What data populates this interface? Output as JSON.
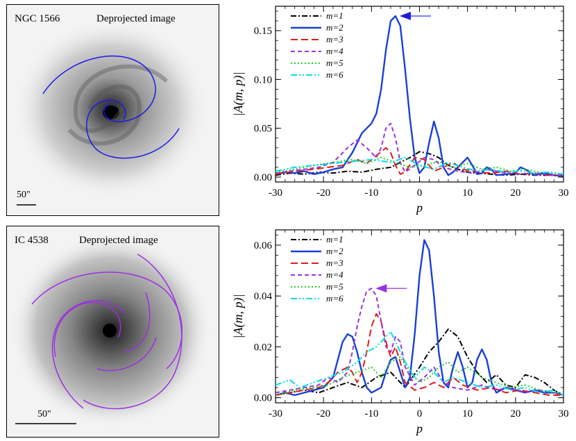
{
  "panels": [
    {
      "galaxy": "NGC 1566",
      "image_label": "Deprojected image",
      "scale_label": "50\"",
      "arm_color": "#1a1ae6"
    },
    {
      "galaxy": "IC 4538",
      "image_label": "Deprojected image",
      "scale_label": "50\"",
      "arm_color": "#9b30e0"
    }
  ],
  "chart_data": [
    {
      "type": "line",
      "title": "",
      "xlabel": "p",
      "ylabel": "|A(m, p)|",
      "xlim": [
        -30,
        30
      ],
      "ylim": [
        -0.005,
        0.175
      ],
      "xticks": [
        -30,
        -20,
        -10,
        0,
        10,
        20,
        30
      ],
      "yticks": [
        0.0,
        0.05,
        0.1,
        0.15
      ],
      "ytick_labels": [
        "0.00",
        "0.05",
        "0.10",
        "0.15"
      ],
      "legend_position": "top-left",
      "peak_marker": {
        "x": -5,
        "y": 0.165,
        "color": "#1a1ae6"
      },
      "series": [
        {
          "name": "m=1",
          "color": "#000000",
          "dash": "8 3 2 3",
          "x": [
            -30,
            -27,
            -24,
            -21,
            -18,
            -15,
            -12,
            -9,
            -6,
            -4,
            -2,
            0,
            2,
            4,
            6,
            8,
            10,
            12,
            15,
            18,
            21,
            24,
            27,
            30
          ],
          "y": [
            0.002,
            0.004,
            0.003,
            0.005,
            0.004,
            0.006,
            0.005,
            0.008,
            0.01,
            0.015,
            0.02,
            0.026,
            0.024,
            0.02,
            0.012,
            0.008,
            0.005,
            0.004,
            0.003,
            0.002,
            0.003,
            0.002,
            0.002,
            0.001
          ]
        },
        {
          "name": "m=2",
          "color": "#1a3fd6",
          "dash": "",
          "x": [
            -30,
            -28,
            -26,
            -24,
            -22,
            -20,
            -18,
            -16,
            -14,
            -12,
            -10,
            -9,
            -8,
            -7,
            -6,
            -5,
            -4,
            -3,
            -2,
            -1,
            0,
            1,
            2,
            3,
            4,
            5,
            6,
            7,
            8,
            9,
            10,
            11,
            12,
            13,
            14,
            15,
            16,
            18,
            20,
            21,
            22,
            24,
            26,
            28,
            30
          ],
          "y": [
            0.003,
            0.005,
            0.004,
            0.006,
            0.003,
            0.005,
            0.008,
            0.01,
            0.025,
            0.045,
            0.055,
            0.065,
            0.09,
            0.13,
            0.16,
            0.165,
            0.155,
            0.11,
            0.06,
            0.02,
            0.004,
            0.01,
            0.035,
            0.057,
            0.04,
            0.01,
            0.002,
            0.005,
            0.01,
            0.015,
            0.02,
            0.012,
            0.003,
            0.004,
            0.01,
            0.008,
            0.002,
            0.003,
            0.004,
            0.01,
            0.008,
            0.002,
            0.004,
            0.002,
            0.001
          ]
        },
        {
          "name": "m=3",
          "color": "#e01a1a",
          "dash": "10 5",
          "x": [
            -30,
            -26,
            -22,
            -19,
            -16,
            -13,
            -11,
            -9,
            -7,
            -6,
            -5,
            -4,
            -3,
            -1,
            1,
            3,
            5,
            7,
            9,
            12,
            15,
            18,
            21,
            24,
            27,
            30
          ],
          "y": [
            0.003,
            0.006,
            0.008,
            0.01,
            0.012,
            0.018,
            0.014,
            0.022,
            0.03,
            0.025,
            0.012,
            0.003,
            0.005,
            0.02,
            0.018,
            0.006,
            0.01,
            0.015,
            0.008,
            0.005,
            0.004,
            0.006,
            0.003,
            0.004,
            0.002,
            0.002
          ]
        },
        {
          "name": "m=4",
          "color": "#9b30e0",
          "dash": "6 4",
          "x": [
            -30,
            -27,
            -24,
            -21,
            -18,
            -15,
            -13,
            -11,
            -9,
            -8,
            -7,
            -6,
            -5,
            -4,
            -3,
            -1,
            1,
            3,
            5,
            8,
            11,
            14,
            17,
            20,
            24,
            27,
            30
          ],
          "y": [
            0.004,
            0.006,
            0.008,
            0.01,
            0.015,
            0.03,
            0.038,
            0.03,
            0.02,
            0.03,
            0.05,
            0.055,
            0.04,
            0.015,
            0.005,
            0.012,
            0.02,
            0.018,
            0.01,
            0.006,
            0.004,
            0.008,
            0.005,
            0.003,
            0.004,
            0.002,
            0.002
          ]
        },
        {
          "name": "m=5",
          "color": "#22cc22",
          "dash": "2 3",
          "x": [
            -30,
            -26,
            -22,
            -18,
            -14,
            -11,
            -8,
            -5,
            -2,
            1,
            4,
            7,
            10,
            13,
            16,
            19,
            22,
            25,
            28,
            30
          ],
          "y": [
            0.005,
            0.008,
            0.012,
            0.015,
            0.018,
            0.014,
            0.02,
            0.015,
            0.01,
            0.012,
            0.016,
            0.01,
            0.014,
            0.008,
            0.01,
            0.006,
            0.008,
            0.005,
            0.004,
            0.003
          ]
        },
        {
          "name": "m=6",
          "color": "#00ddee",
          "dash": "9 3 2 3 2 3",
          "x": [
            -30,
            -26,
            -22,
            -18,
            -14,
            -10,
            -6,
            -3,
            0,
            3,
            6,
            9,
            12,
            15,
            18,
            21,
            24,
            27,
            30
          ],
          "y": [
            0.006,
            0.01,
            0.012,
            0.014,
            0.016,
            0.018,
            0.015,
            0.02,
            0.012,
            0.008,
            0.015,
            0.01,
            0.006,
            0.008,
            0.005,
            0.006,
            0.004,
            0.005,
            0.003
          ]
        }
      ]
    },
    {
      "type": "line",
      "title": "",
      "xlabel": "p",
      "ylabel": "|A(m, p)|",
      "xlim": [
        -30,
        30
      ],
      "ylim": [
        -0.002,
        0.066
      ],
      "xticks": [
        -30,
        -20,
        -10,
        0,
        10,
        20,
        30
      ],
      "yticks": [
        0.0,
        0.02,
        0.04,
        0.06
      ],
      "ytick_labels": [
        "0.00",
        "0.02",
        "0.04",
        "0.06"
      ],
      "legend_position": "top-left",
      "peak_marker": {
        "x": -10,
        "y": 0.043,
        "color": "#9b30e0"
      },
      "series": [
        {
          "name": "m=1",
          "color": "#000000",
          "dash": "8 3 2 3",
          "x": [
            -30,
            -27,
            -24,
            -21,
            -18,
            -15,
            -12,
            -9,
            -6,
            -3,
            0,
            2,
            4,
            6,
            8,
            10,
            12,
            14,
            16,
            18,
            20,
            22,
            24,
            26,
            28,
            30
          ],
          "y": [
            0.001,
            0.002,
            0.003,
            0.002,
            0.004,
            0.006,
            0.004,
            0.008,
            0.01,
            0.004,
            0.012,
            0.018,
            0.022,
            0.027,
            0.024,
            0.016,
            0.01,
            0.006,
            0.009,
            0.005,
            0.004,
            0.009,
            0.008,
            0.006,
            0.003,
            0.001
          ]
        },
        {
          "name": "m=2",
          "color": "#1a3fd6",
          "dash": "",
          "x": [
            -30,
            -28,
            -26,
            -24,
            -22,
            -20,
            -18,
            -17,
            -16,
            -15,
            -14,
            -13,
            -12,
            -11,
            -10,
            -9,
            -8,
            -7,
            -6,
            -5,
            -4,
            -3,
            -2,
            -1,
            0,
            1,
            2,
            3,
            4,
            5,
            6,
            7,
            8,
            9,
            10,
            11,
            12,
            13,
            14,
            15,
            16,
            18,
            20,
            22,
            24,
            26,
            28,
            30
          ],
          "y": [
            0.001,
            0.002,
            0.001,
            0.002,
            0.003,
            0.004,
            0.008,
            0.015,
            0.022,
            0.025,
            0.024,
            0.018,
            0.01,
            0.004,
            0.002,
            0.003,
            0.004,
            0.01,
            0.015,
            0.016,
            0.01,
            0.004,
            0.008,
            0.025,
            0.048,
            0.062,
            0.058,
            0.04,
            0.018,
            0.006,
            0.004,
            0.012,
            0.018,
            0.012,
            0.004,
            0.006,
            0.015,
            0.019,
            0.015,
            0.006,
            0.002,
            0.004,
            0.003,
            0.002,
            0.003,
            0.002,
            0.002,
            0.001
          ]
        },
        {
          "name": "m=3",
          "color": "#e01a1a",
          "dash": "10 5",
          "x": [
            -30,
            -27,
            -24,
            -21,
            -19,
            -17,
            -15,
            -14,
            -13,
            -12,
            -11,
            -10,
            -9,
            -8,
            -7,
            -6,
            -5,
            -4,
            -3,
            -1,
            1,
            3,
            5,
            7,
            9,
            12,
            15,
            18,
            21,
            24,
            27,
            30
          ],
          "y": [
            0.001,
            0.002,
            0.003,
            0.004,
            0.006,
            0.01,
            0.012,
            0.01,
            0.006,
            0.01,
            0.018,
            0.028,
            0.033,
            0.03,
            0.022,
            0.016,
            0.02,
            0.014,
            0.006,
            0.003,
            0.004,
            0.006,
            0.004,
            0.008,
            0.005,
            0.003,
            0.004,
            0.002,
            0.003,
            0.002,
            0.001,
            0.001
          ]
        },
        {
          "name": "m=4",
          "color": "#9b30e0",
          "dash": "6 4",
          "x": [
            -30,
            -27,
            -24,
            -21,
            -19,
            -17,
            -15,
            -14,
            -13,
            -12,
            -11,
            -10,
            -9,
            -8,
            -7,
            -6,
            -5,
            -4,
            -3,
            -1,
            1,
            3,
            5,
            7,
            10,
            13,
            16,
            19,
            22,
            25,
            28,
            30
          ],
          "y": [
            0.002,
            0.003,
            0.004,
            0.005,
            0.008,
            0.006,
            0.01,
            0.018,
            0.028,
            0.036,
            0.042,
            0.043,
            0.04,
            0.03,
            0.02,
            0.018,
            0.024,
            0.022,
            0.012,
            0.005,
            0.008,
            0.012,
            0.006,
            0.004,
            0.003,
            0.005,
            0.003,
            0.004,
            0.002,
            0.003,
            0.002,
            0.001
          ]
        },
        {
          "name": "m=5",
          "color": "#22cc22",
          "dash": "2 3",
          "x": [
            -30,
            -26,
            -22,
            -19,
            -16,
            -13,
            -10,
            -8,
            -6,
            -4,
            -2,
            0,
            2,
            4,
            6,
            8,
            10,
            13,
            16,
            19,
            22,
            25,
            28,
            30
          ],
          "y": [
            0.001,
            0.003,
            0.004,
            0.005,
            0.008,
            0.01,
            0.012,
            0.008,
            0.014,
            0.016,
            0.01,
            0.006,
            0.008,
            0.012,
            0.014,
            0.01,
            0.012,
            0.008,
            0.006,
            0.004,
            0.005,
            0.003,
            0.002,
            0.001
          ]
        },
        {
          "name": "m=6",
          "color": "#00ddee",
          "dash": "9 3 2 3 2 3",
          "x": [
            -30,
            -27,
            -25,
            -22,
            -19,
            -16,
            -13,
            -11,
            -9,
            -7,
            -6,
            -5,
            -3,
            -1,
            1,
            3,
            5,
            7,
            10,
            13,
            16,
            19,
            22,
            25,
            28,
            30
          ],
          "y": [
            0.005,
            0.007,
            0.004,
            0.006,
            0.008,
            0.01,
            0.014,
            0.018,
            0.02,
            0.024,
            0.026,
            0.022,
            0.014,
            0.008,
            0.012,
            0.01,
            0.006,
            0.008,
            0.006,
            0.004,
            0.005,
            0.003,
            0.004,
            0.002,
            0.003,
            0.001
          ]
        }
      ]
    }
  ]
}
